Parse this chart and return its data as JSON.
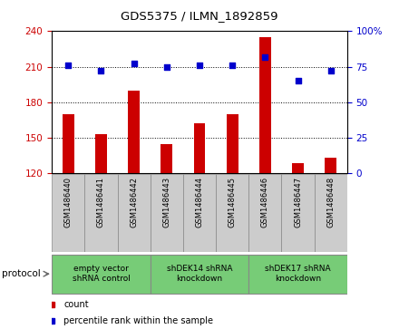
{
  "title": "GDS5375 / ILMN_1892859",
  "samples": [
    "GSM1486440",
    "GSM1486441",
    "GSM1486442",
    "GSM1486443",
    "GSM1486444",
    "GSM1486445",
    "GSM1486446",
    "GSM1486447",
    "GSM1486448"
  ],
  "counts": [
    170,
    153,
    190,
    144,
    162,
    170,
    235,
    128,
    133
  ],
  "percentile_ranks": [
    76,
    72,
    77,
    75,
    76,
    76,
    82,
    65,
    72
  ],
  "ylim_left": [
    120,
    240
  ],
  "ylim_right": [
    0,
    100
  ],
  "yticks_left": [
    120,
    150,
    180,
    210,
    240
  ],
  "yticks_right": [
    0,
    25,
    50,
    75,
    100
  ],
  "protocols": [
    {
      "label": "empty vector\nshRNA control",
      "start": 0,
      "end": 3
    },
    {
      "label": "shDEK14 shRNA\nknockdown",
      "start": 3,
      "end": 6
    },
    {
      "label": "shDEK17 shRNA\nknockdown",
      "start": 6,
      "end": 9
    }
  ],
  "bar_color": "#cc0000",
  "dot_color": "#0000cc",
  "bar_width": 0.35,
  "legend_count_label": "count",
  "legend_percentile_label": "percentile rank within the sample",
  "protocol_label": "protocol",
  "sample_box_color": "#cccccc",
  "protocol_box_color": "#77cc77",
  "protocol_box_edge": "#888888"
}
